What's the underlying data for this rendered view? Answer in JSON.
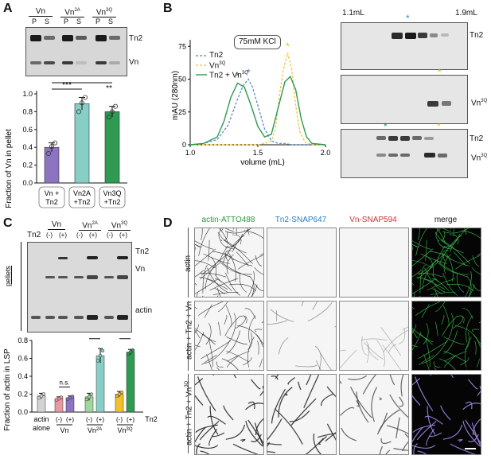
{
  "panels": {
    "A": "A",
    "B": "B",
    "C": "C",
    "D": "D"
  },
  "A": {
    "gel_groups": [
      "Vn",
      "Vn2A",
      "Vn3Q"
    ],
    "gel_group_labels": [
      {
        "base": "Vn",
        "sup": ""
      },
      {
        "base": "Vn",
        "sup": "2A"
      },
      {
        "base": "Vn",
        "sup": "3Q"
      }
    ],
    "lane_labels": [
      "P",
      "S",
      "P",
      "S",
      "P",
      "S"
    ],
    "band_labels": [
      "Tn2",
      "Vn"
    ],
    "chart_data": {
      "type": "bar",
      "categories": [
        "Vn + Tn2",
        "Vn2A + Tn2",
        "Vn3Q + Tn2"
      ],
      "category_lines": [
        [
          "Vn +",
          "Tn2"
        ],
        [
          "Vn2A",
          "+Tn2"
        ],
        [
          "Vn3Q",
          "+Tn2"
        ]
      ],
      "values": [
        0.4,
        0.89,
        0.8
      ],
      "errors": [
        0.05,
        0.07,
        0.06
      ],
      "points": [
        [
          0.33,
          0.41,
          0.45
        ],
        [
          0.8,
          0.9,
          0.96
        ],
        [
          0.74,
          0.8,
          0.86
        ]
      ],
      "colors": [
        "#8e73c0",
        "#87cec6",
        "#2e9a52"
      ],
      "ylabel": "Fraction of Vn in pellet",
      "ylim": [
        0.0,
        1.0
      ],
      "yticks": [
        "0.0",
        "0.2",
        "0.4",
        "0.6",
        "0.8",
        "1.0"
      ],
      "significance": [
        "***",
        "**"
      ]
    }
  },
  "B": {
    "buffer_label": "75mM KCl",
    "chart_data": {
      "type": "line",
      "xlabel": "volume (mL)",
      "ylabel": "mAU (280nm)",
      "xlim": [
        1.0,
        2.0
      ],
      "ylim": [
        0,
        80
      ],
      "xticks": [
        "1.0",
        "1.5",
        "2.0"
      ],
      "yticks": [
        "0",
        "25",
        "50",
        "75"
      ],
      "legend": [
        {
          "name": "Tn2",
          "color": "#4a84c4",
          "dash": true
        },
        {
          "name": "Vn3Q",
          "color": "#f2c12a",
          "dash": true
        },
        {
          "name": "Tn2 + Vn3Q",
          "color": "#2e9a52",
          "dash": false
        }
      ],
      "legend_display": [
        {
          "base": "Tn2",
          "sup": ""
        },
        {
          "base": "Vn",
          "sup": "3Q"
        },
        {
          "base": "Tn2 + Vn",
          "sup": "3Q"
        }
      ],
      "series": [
        {
          "name": "Tn2",
          "x": [
            1.0,
            1.1,
            1.2,
            1.28,
            1.34,
            1.39,
            1.43,
            1.46,
            1.5,
            1.55,
            1.6,
            1.65,
            1.7,
            1.75,
            1.8,
            1.85,
            1.9,
            2.0
          ],
          "y": [
            0,
            1,
            4,
            15,
            32,
            45,
            50,
            44,
            30,
            12,
            3,
            1,
            1,
            0,
            0,
            0,
            0,
            0
          ]
        },
        {
          "name": "Vn3Q",
          "x": [
            1.0,
            1.5,
            1.55,
            1.6,
            1.63,
            1.66,
            1.69,
            1.72,
            1.75,
            1.78,
            1.81,
            1.85,
            1.9,
            2.0
          ],
          "y": [
            0,
            0,
            1,
            3,
            12,
            38,
            58,
            70,
            58,
            30,
            10,
            2,
            0,
            0
          ]
        },
        {
          "name": "Tn2 + Vn3Q",
          "x": [
            1.0,
            1.1,
            1.2,
            1.25,
            1.3,
            1.35,
            1.4,
            1.45,
            1.5,
            1.55,
            1.6,
            1.65,
            1.7,
            1.74,
            1.78,
            1.82,
            1.86,
            1.9,
            2.0
          ],
          "y": [
            0,
            1,
            6,
            18,
            36,
            47,
            44,
            30,
            14,
            6,
            8,
            28,
            48,
            52,
            42,
            20,
            6,
            1,
            0
          ]
        }
      ],
      "peak_markers": [
        {
          "x": 1.35,
          "y": 52,
          "color": "#2e9a52"
        },
        {
          "x": 1.43,
          "y": 55,
          "color": "#4a84c4"
        },
        {
          "x": 1.72,
          "y": 75,
          "color": "#f2c12a"
        }
      ]
    },
    "gel_volume_start": "1.1mL",
    "gel_volume_end": "1.9mL",
    "gel_labels": [
      "Tn2",
      "Vn3Q",
      "Tn2",
      "Vn3Q"
    ],
    "gel_labels_display": [
      {
        "base": "Tn2",
        "sup": ""
      },
      {
        "base": "Vn",
        "sup": "3Q"
      },
      {
        "base": "Tn2",
        "sup": ""
      },
      {
        "base": "Vn",
        "sup": "3Q"
      }
    ]
  },
  "C": {
    "groups": [
      "Vn",
      "Vn2A",
      "Vn3Q"
    ],
    "group_labels": [
      {
        "base": "Vn",
        "sup": ""
      },
      {
        "base": "Vn",
        "sup": "2A"
      },
      {
        "base": "Vn",
        "sup": "3Q"
      }
    ],
    "tn2_label": "Tn2",
    "lane_signs": [
      "(-)",
      "(+)",
      "(-)",
      "(+)",
      "(-)",
      "(+)"
    ],
    "side_label": "pellets",
    "band_labels": [
      "Tn2",
      "Vn",
      "actin"
    ],
    "chart_data": {
      "type": "bar",
      "categories": [
        "actin alone",
        "Vn (-)",
        "Vn (+)",
        "Vn2A (-)",
        "Vn2A (+)",
        "Vn3Q (-)",
        "Vn3Q (+)"
      ],
      "values": [
        0.18,
        0.15,
        0.16,
        0.17,
        0.63,
        0.2,
        0.67
      ],
      "errors": [
        0.03,
        0.02,
        0.02,
        0.04,
        0.08,
        0.03,
        0.03
      ],
      "colors": [
        "#d3d3d3",
        "#e89aa0",
        "#8e73c0",
        "#9fd79e",
        "#87cec6",
        "#f2c12a",
        "#2e9a52"
      ],
      "ylabel": "Fraction of actin in LSP",
      "ylim": [
        0.0,
        0.8
      ],
      "yticks": [
        "0.0",
        "0.2",
        "0.4",
        "0.6",
        "0.8"
      ],
      "significance": [
        "n.s.",
        "****",
        "****"
      ],
      "bottom_signs": [
        "(-)",
        "(+)",
        "(-)",
        "(+)",
        "(-)",
        "(+)"
      ],
      "tn2_label": "Tn2",
      "group_labels": [
        {
          "lines": [
            "actin",
            "alone"
          ],
          "sup": ""
        },
        {
          "lines": [
            "Vn"
          ],
          "sup": ""
        },
        {
          "lines": [
            "Vn"
          ],
          "sup": "2A"
        },
        {
          "lines": [
            "Vn"
          ],
          "sup": "3Q"
        }
      ]
    }
  },
  "D": {
    "columns": [
      {
        "label": "actin-ATTO488",
        "color": "#2e9a3e"
      },
      {
        "label": "Tn2-SNAP647",
        "color": "#2b7fbf"
      },
      {
        "label": "Vn-SNAP594",
        "color": "#d2303a"
      },
      {
        "label": "merge",
        "color": "#111111"
      }
    ],
    "rows": [
      {
        "base": "actin",
        "sup": ""
      },
      {
        "base": "actin + Tn2 + Vn",
        "sup": ""
      },
      {
        "base": "actin + Tn2 + Vn",
        "sup": "3Q"
      }
    ]
  }
}
